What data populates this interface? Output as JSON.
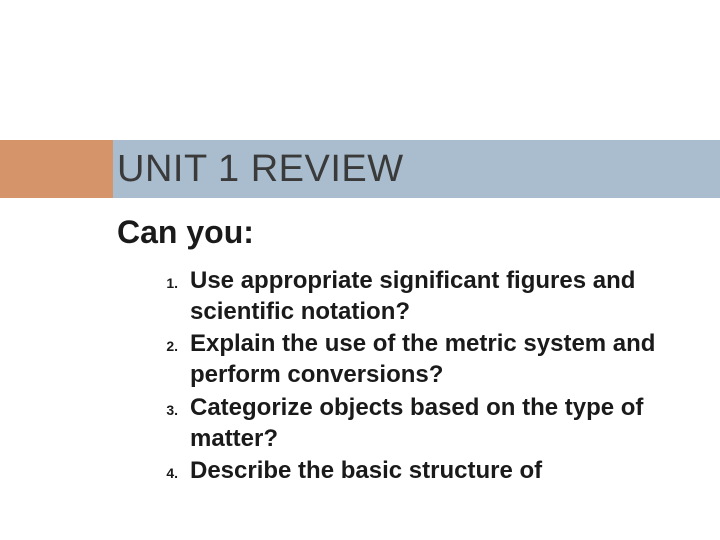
{
  "colors": {
    "accent": "#d5946a",
    "band": "#a9bdce",
    "title_text": "#3a3a3a",
    "body_text": "#1a1a1a",
    "background": "#ffffff"
  },
  "title": "UNIT 1 REVIEW",
  "subheading": "Can you:",
  "items": [
    {
      "num": "1.",
      "text": "Use appropriate significant figures and scientific notation?"
    },
    {
      "num": "2.",
      "text": "Explain the use of the metric system and perform conversions?"
    },
    {
      "num": "3.",
      "text": "Categorize objects based on the type of matter?"
    },
    {
      "num": "4.",
      "text": "Describe the basic structure of"
    }
  ],
  "typography": {
    "title_fontsize": 38,
    "subheading_fontsize": 32,
    "item_fontsize": 24,
    "num_fontsize": 14,
    "font_family": "Arial"
  }
}
